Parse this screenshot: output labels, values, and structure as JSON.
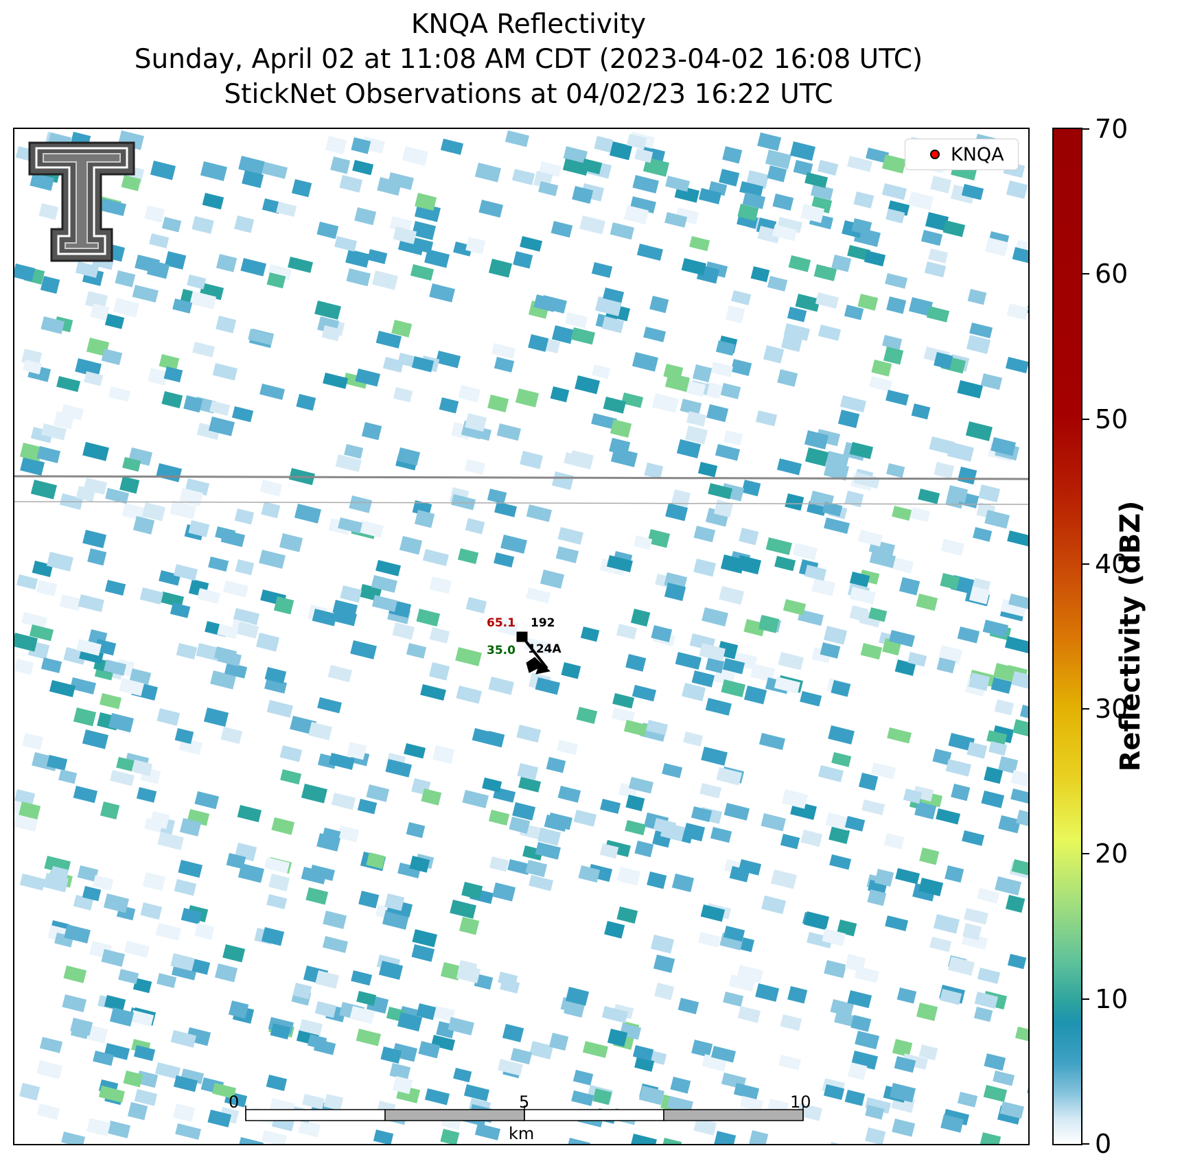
{
  "title": {
    "line1": "KNQA Reflectivity",
    "line2": "Sunday, April 02 at 11:08 AM CDT (2023-04-02 16:08 UTC)",
    "line3": "StickNet Observations at 04/02/23 16:22 UTC"
  },
  "legend": {
    "label": "KNQA",
    "marker_color": "#ff0000"
  },
  "station": {
    "temperature": "65.1",
    "temperature_color": "#b30000",
    "dewpoint": "35.0",
    "dewpoint_color": "#006400",
    "pressure": "192",
    "id": "124A",
    "wind_barb": "wind-barb-icon"
  },
  "scale_bar": {
    "tick_labels": [
      "0",
      "5",
      "10"
    ],
    "unit": "km"
  },
  "colorbar": {
    "label": "Reflectivity (dBZ)",
    "min": 0,
    "max": 70,
    "ticks": [
      "0",
      "10",
      "20",
      "30",
      "40",
      "50",
      "60",
      "70"
    ],
    "colors": [
      "#ffffff",
      "#86c3dd",
      "#1d93b0",
      "#5fc29a",
      "#e9f85a",
      "#e3b104",
      "#d97605",
      "#c94706",
      "#a40000"
    ]
  },
  "logo": {
    "icon": "texas-tech-double-t-logo-icon"
  },
  "chart_data": {
    "type": "heatmap",
    "title": "KNQA Reflectivity",
    "units": "dBZ",
    "range": [
      0,
      70
    ],
    "note_values": "radar reflectivity field mostly 0-15 dBZ scattered echoes"
  }
}
